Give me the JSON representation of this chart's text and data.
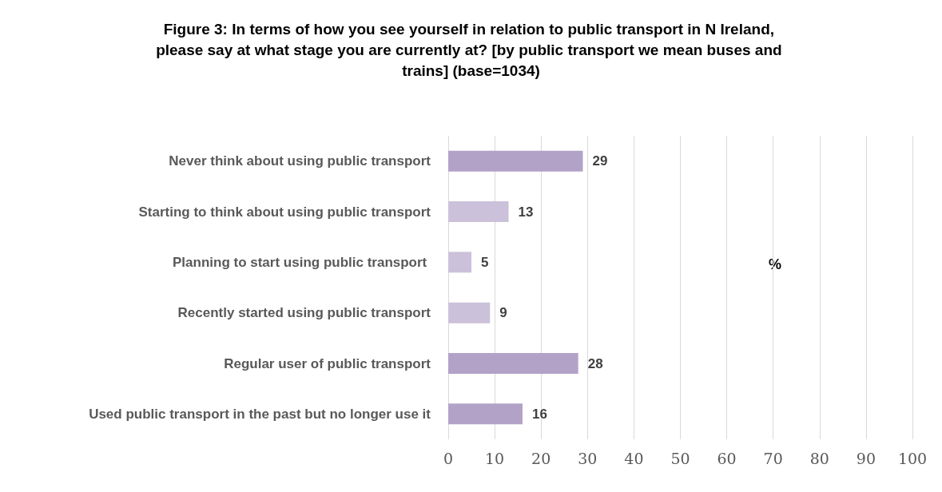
{
  "chart_data": {
    "type": "bar",
    "orientation": "horizontal",
    "title": "Figure 3: In terms of how you see yourself in relation to public transport in N Ireland, please say at what stage you are currently at? [by public transport we mean buses and trains] (base=1034)",
    "xlabel": "%",
    "categories": [
      "Never think about using public transport",
      "Starting to think about using public transport",
      "Planning to start using public transport ",
      "Recently started using public transport",
      "Regular user of public transport",
      "Used public transport in the past but no longer use it"
    ],
    "values": [
      29,
      13,
      5,
      9,
      28,
      16
    ],
    "colors": [
      "#b3a2c7",
      "#ccc1da",
      "#ccc1da",
      "#ccc1da",
      "#b3a2c7",
      "#b3a2c7"
    ],
    "xlim": [
      0,
      100
    ],
    "xticks": [
      0,
      10,
      20,
      30,
      40,
      50,
      60,
      70,
      80,
      90,
      100
    ],
    "grid": "x",
    "data_labels": true
  }
}
